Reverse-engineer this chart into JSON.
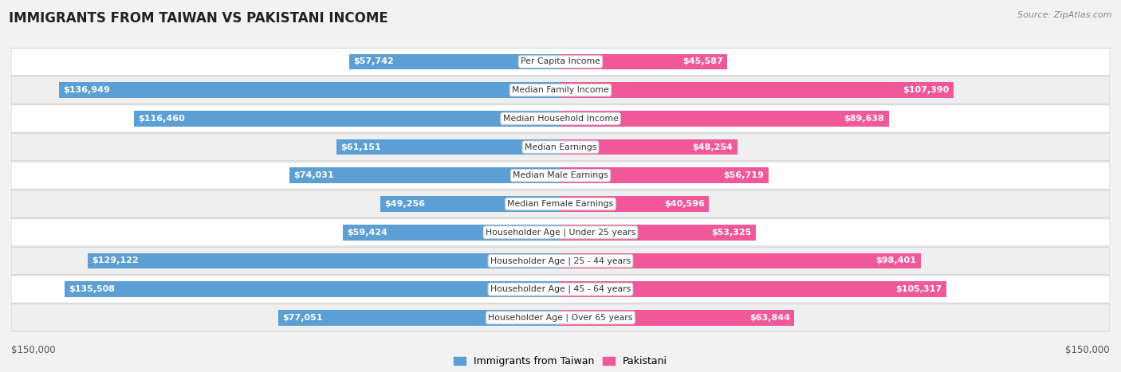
{
  "title": "IMMIGRANTS FROM TAIWAN VS PAKISTANI INCOME",
  "source": "Source: ZipAtlas.com",
  "categories": [
    "Per Capita Income",
    "Median Family Income",
    "Median Household Income",
    "Median Earnings",
    "Median Male Earnings",
    "Median Female Earnings",
    "Householder Age | Under 25 years",
    "Householder Age | 25 - 44 years",
    "Householder Age | 45 - 64 years",
    "Householder Age | Over 65 years"
  ],
  "taiwan_values": [
    57742,
    136949,
    116460,
    61151,
    74031,
    49256,
    59424,
    129122,
    135508,
    77051
  ],
  "pakistani_values": [
    45587,
    107390,
    89638,
    48254,
    56719,
    40596,
    53325,
    98401,
    105317,
    63844
  ],
  "taiwan_labels": [
    "$57,742",
    "$136,949",
    "$116,460",
    "$61,151",
    "$74,031",
    "$49,256",
    "$59,424",
    "$129,122",
    "$135,508",
    "$77,051"
  ],
  "pakistani_labels": [
    "$45,587",
    "$107,390",
    "$89,638",
    "$48,254",
    "$56,719",
    "$40,596",
    "$53,325",
    "$98,401",
    "$105,317",
    "$63,844"
  ],
  "taiwan_color_light": "#aec9e8",
  "taiwan_color_dark": "#5b9fd4",
  "pakistani_color_light": "#f5b8cc",
  "pakistani_color_dark": "#f0589a",
  "max_value": 150000,
  "xlabel_left": "$150,000",
  "xlabel_right": "$150,000",
  "legend_taiwan": "Immigrants from Taiwan",
  "legend_pakistani": "Pakistani",
  "background_color": "#f2f2f2",
  "row_colors": [
    "#ffffff",
    "#eeeeee",
    "#ffffff",
    "#eeeeee",
    "#ffffff",
    "#eeeeee",
    "#ffffff",
    "#eeeeee",
    "#ffffff",
    "#eeeeee"
  ],
  "inside_threshold_ratio": 0.2
}
